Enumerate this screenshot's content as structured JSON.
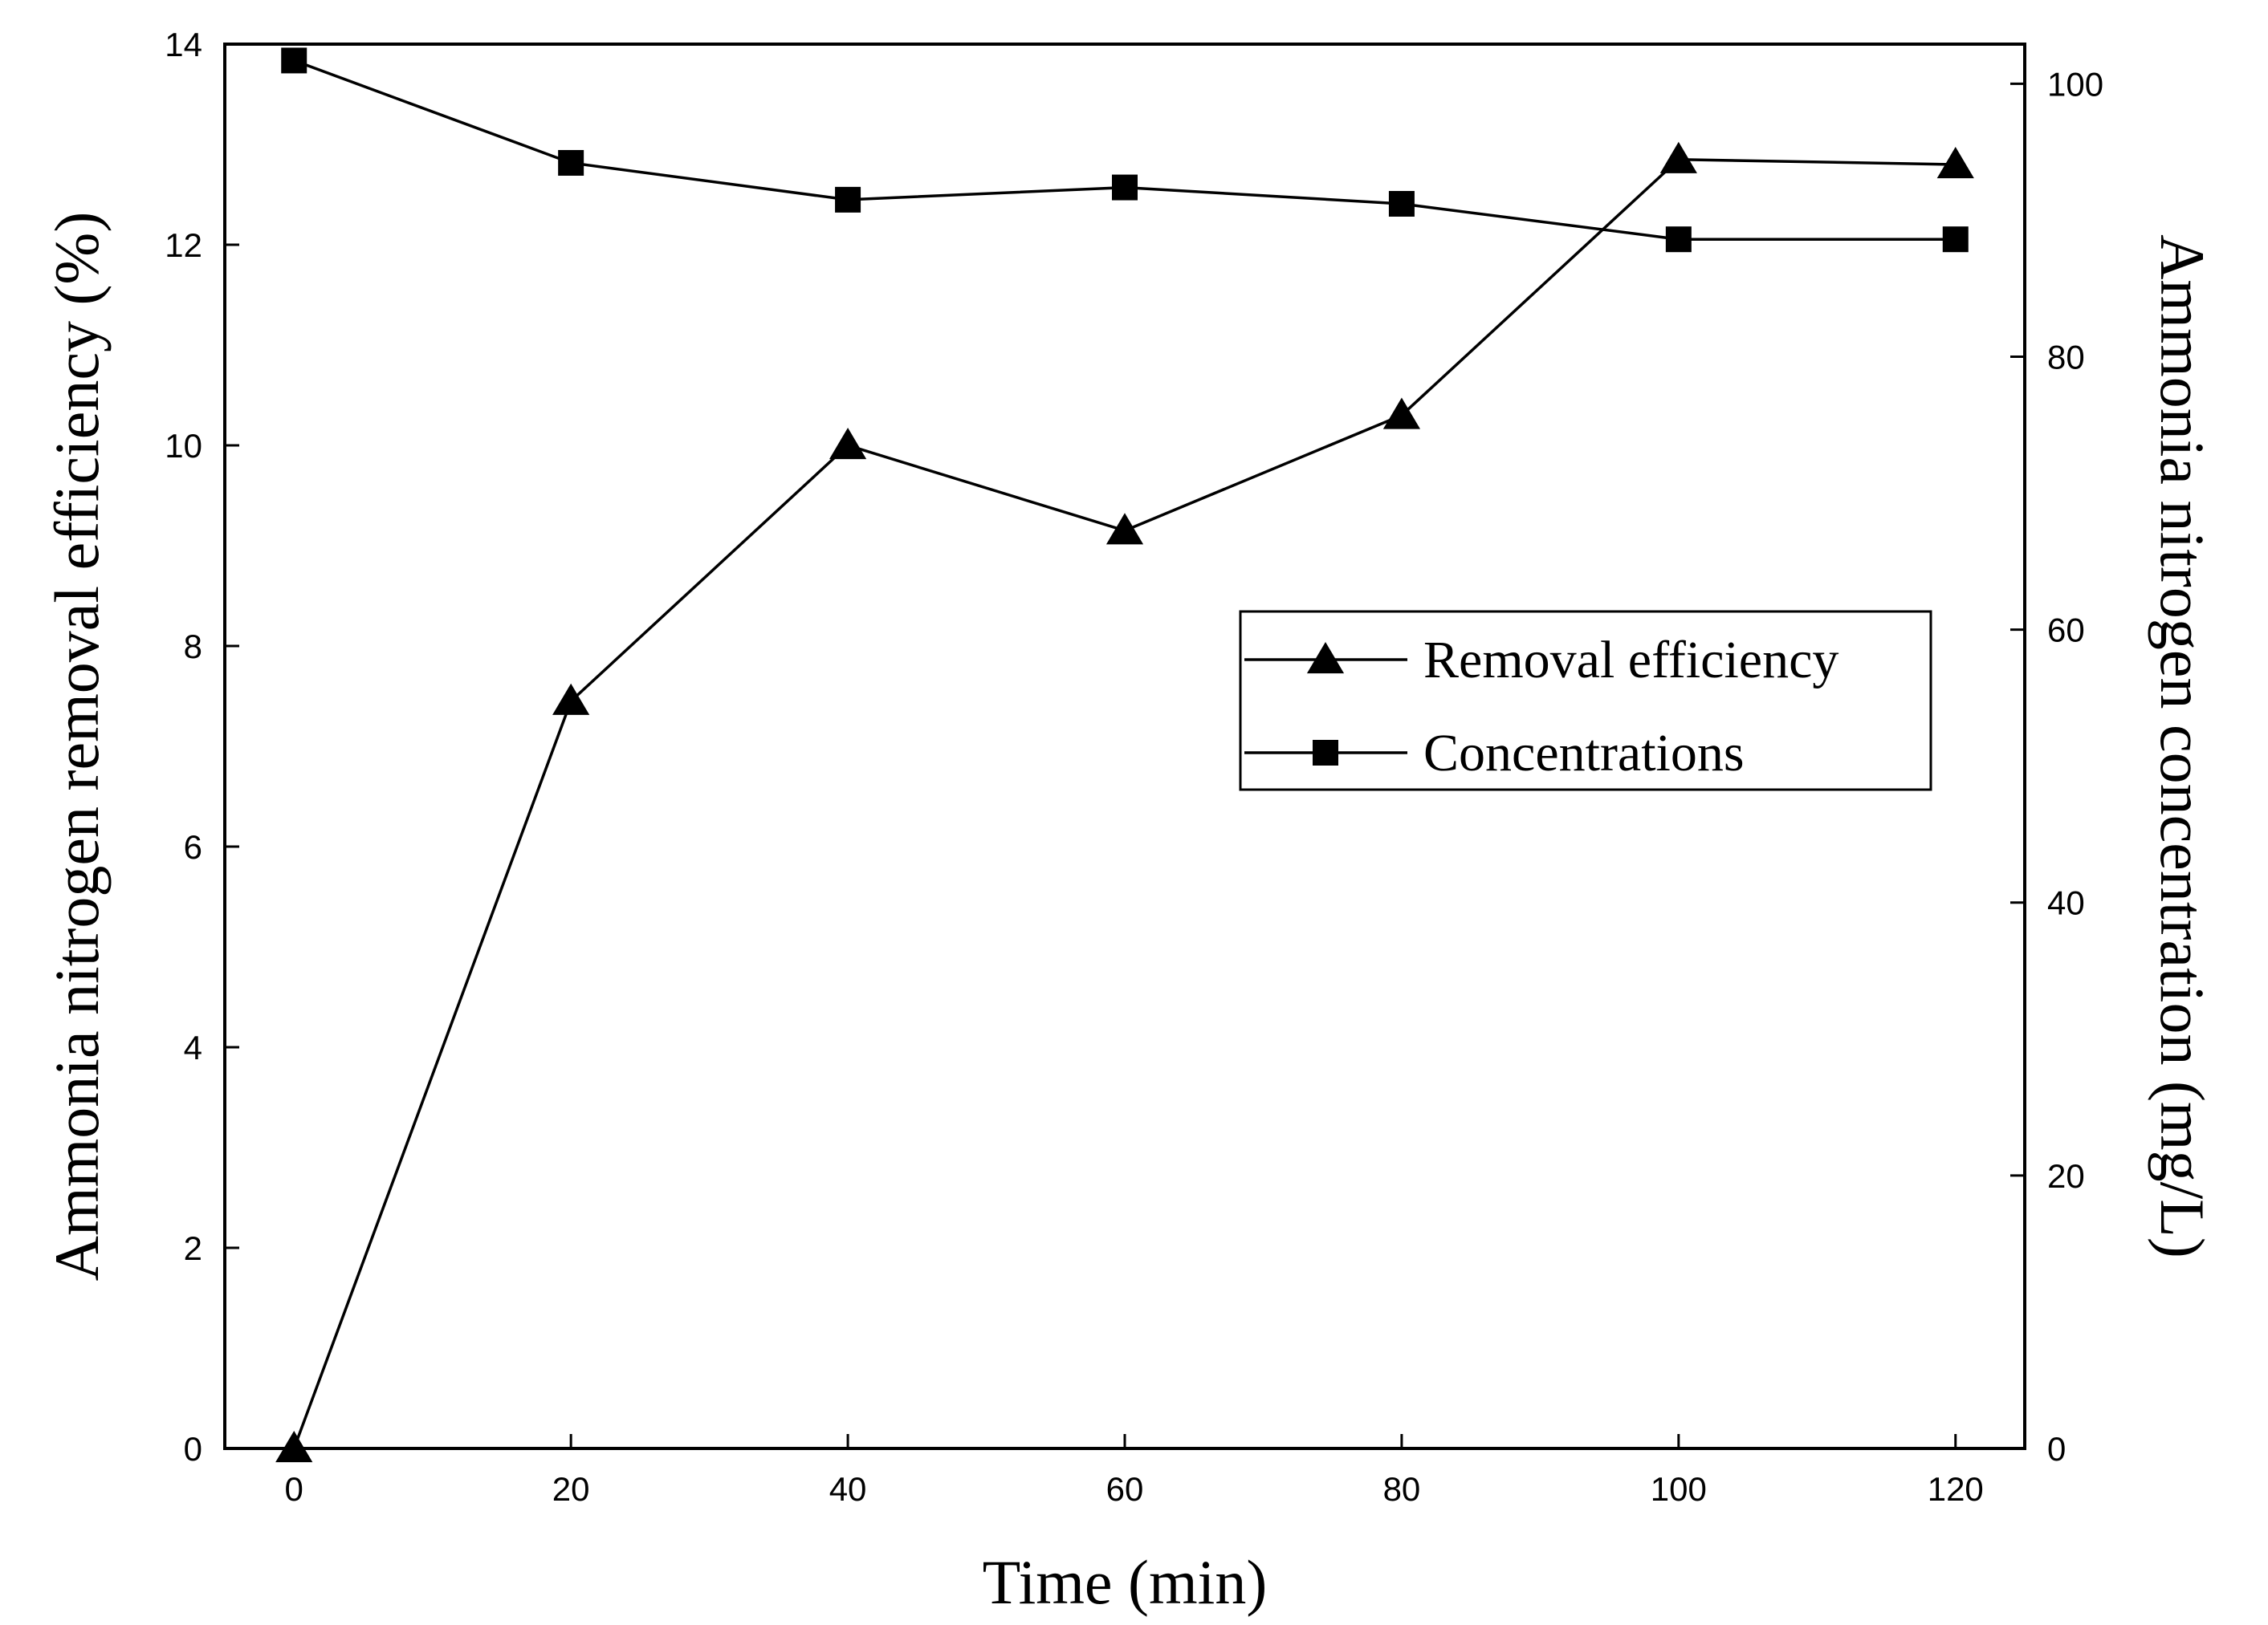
{
  "chart_data": {
    "type": "line",
    "title": "",
    "xlabel": "Time (min)",
    "ylabel": "Ammonia nitrogen removal efficiency (%)",
    "y2label": "Ammonia nitrogen concentration (mg/L)",
    "xlim": [
      -5,
      125
    ],
    "ylim": [
      0,
      14
    ],
    "y2lim": [
      0,
      102.9
    ],
    "xticks": [
      0,
      20,
      40,
      60,
      80,
      100,
      120
    ],
    "yticks": [
      0,
      2,
      4,
      6,
      8,
      10,
      12,
      14
    ],
    "y2ticks": [
      0,
      20,
      40,
      60,
      80,
      100
    ],
    "grid": false,
    "legend_position": "middle-right",
    "x": [
      0,
      20,
      40,
      60,
      80,
      100,
      120
    ],
    "series": [
      {
        "name": "Removal efficiency",
        "axis": "left",
        "marker": "triangle",
        "color": "#000000",
        "values": [
          0,
          7.45,
          10.0,
          9.15,
          10.3,
          12.85,
          12.8
        ]
      },
      {
        "name": "Concentrations",
        "axis": "right",
        "marker": "square",
        "color": "#000000",
        "values": [
          101.7,
          94.2,
          91.5,
          92.4,
          91.2,
          88.6,
          88.6
        ]
      }
    ]
  }
}
